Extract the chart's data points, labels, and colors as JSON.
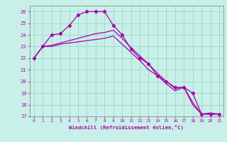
{
  "xlabel": "Windchill (Refroidissement éolien,°C)",
  "bg_color": "#c8f0e8",
  "grid_color": "#a0d8d0",
  "line_color": "#aa00aa",
  "spine_color": "#888888",
  "xlim": [
    -0.5,
    21.5
  ],
  "ylim": [
    17,
    26.5
  ],
  "yticks": [
    17,
    18,
    19,
    20,
    21,
    22,
    23,
    24,
    25,
    26
  ],
  "xticks": [
    0,
    1,
    2,
    3,
    4,
    5,
    6,
    7,
    8,
    9,
    10,
    11,
    12,
    13,
    14,
    15,
    16,
    17,
    18,
    19,
    20,
    21
  ],
  "series": [
    {
      "x": [
        0,
        1,
        2,
        3,
        4,
        5,
        6,
        7,
        8,
        9,
        10,
        11,
        12,
        13,
        14,
        15,
        16,
        17,
        18,
        19,
        20,
        21
      ],
      "y": [
        22,
        23,
        24,
        24.1,
        24.8,
        25.7,
        26.0,
        26.0,
        26.0,
        24.8,
        24.0,
        22.8,
        22.0,
        21.5,
        20.5,
        20.0,
        19.5,
        19.5,
        19.0,
        17.2,
        17.2,
        17.2
      ],
      "marker": true
    },
    {
      "x": [
        0,
        1,
        2,
        3,
        4,
        5,
        6,
        7,
        8,
        9,
        10,
        11,
        12,
        13,
        14,
        15,
        16,
        17,
        18,
        19,
        20,
        21
      ],
      "y": [
        22,
        23,
        23.0,
        23.2,
        23.3,
        23.4,
        23.5,
        23.6,
        23.7,
        23.9,
        23.2,
        22.5,
        21.8,
        21.0,
        20.5,
        19.8,
        19.2,
        19.5,
        18.0,
        17.2,
        17.3,
        17.2
      ],
      "marker": false
    },
    {
      "x": [
        0,
        1,
        2,
        3,
        4,
        5,
        6,
        7,
        8,
        9,
        10,
        11,
        12,
        13,
        14,
        15,
        16,
        17,
        18,
        19,
        20,
        21
      ],
      "y": [
        22,
        23,
        23.1,
        23.3,
        23.5,
        23.7,
        23.9,
        24.1,
        24.2,
        24.4,
        23.7,
        22.9,
        22.2,
        21.5,
        20.7,
        20.0,
        19.4,
        19.5,
        18.2,
        17.2,
        17.2,
        17.2
      ],
      "marker": false
    }
  ]
}
